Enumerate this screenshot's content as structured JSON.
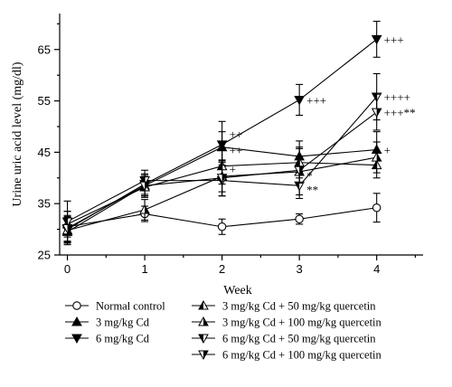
{
  "chart_data": {
    "type": "line",
    "title": "",
    "xlabel": "Week",
    "ylabel": "Urine uric acid level (mg/dl)",
    "x": [
      0,
      1,
      2,
      3,
      4
    ],
    "x_ticks": [
      "0",
      "1",
      "2",
      "3",
      "4"
    ],
    "y_ticks": [
      "25",
      "35",
      "45",
      "55",
      "65"
    ],
    "xlim": [
      -0.1,
      4.6
    ],
    "ylim": [
      25,
      72
    ],
    "grid": false,
    "legend_position": "bottom",
    "series": [
      {
        "name": "Normal control",
        "marker": "circle-open",
        "values": [
          30.5,
          33.0,
          30.5,
          32.0,
          34.2
        ],
        "errors": [
          3.0,
          1.5,
          1.5,
          1.0,
          2.8
        ]
      },
      {
        "name": "3 mg/kg Cd",
        "marker": "triangle-up-filled",
        "values": [
          29.5,
          38.5,
          46.0,
          44.2,
          45.5
        ],
        "errors": [
          2.5,
          2.0,
          3.0,
          3.0,
          3.5
        ]
      },
      {
        "name": "6 mg/kg Cd",
        "marker": "triangle-down-filled",
        "values": [
          30.0,
          38.8,
          46.5,
          55.2,
          67.0
        ],
        "errors": [
          2.5,
          2.0,
          4.5,
          3.0,
          3.5
        ]
      },
      {
        "name": "3 mg/kg Cd + 50 mg/kg quercetin",
        "marker": "triangle-up-halffilled",
        "values": [
          31.0,
          38.2,
          42.3,
          43.0,
          42.5
        ],
        "errors": [
          2.5,
          2.0,
          3.5,
          3.0,
          2.5
        ]
      },
      {
        "name": "3 mg/kg Cd + 100 mg/kg quercetin",
        "marker": "triangle-up-halfopen",
        "values": [
          29.8,
          33.8,
          40.3,
          41.2,
          44.0
        ],
        "errors": [
          2.5,
          2.0,
          3.0,
          4.5,
          3.0
        ]
      },
      {
        "name": "6 mg/kg Cd + 50 mg/kg quercetin",
        "marker": "triangle-down-halffilled",
        "values": [
          31.5,
          39.5,
          39.5,
          38.5,
          55.8
        ],
        "errors": [
          4.0,
          2.0,
          3.0,
          2.5,
          4.5
        ]
      },
      {
        "name": "6 mg/kg Cd + 100 mg/kg quercetin",
        "marker": "triangle-down-halfopen",
        "values": [
          30.2,
          38.5,
          40.0,
          41.5,
          52.8
        ],
        "errors": [
          2.5,
          2.0,
          3.5,
          2.5,
          3.5
        ]
      }
    ],
    "annotations": [
      {
        "text": "+++",
        "x": 4,
        "y": 67.0
      },
      {
        "text": "+++",
        "x": 3,
        "y": 55.2
      },
      {
        "text": "++++",
        "x": 4,
        "y": 55.8
      },
      {
        "text": "+++**",
        "x": 4,
        "y": 52.8
      },
      {
        "text": "++",
        "x": 2,
        "y": 48.6
      },
      {
        "text": "++",
        "x": 2,
        "y": 45.5
      },
      {
        "text": "+",
        "x": 4,
        "y": 45.5
      },
      {
        "text": "+",
        "x": 2,
        "y": 41.8
      },
      {
        "text": "*",
        "x": 3,
        "y": 40.5
      },
      {
        "text": "**",
        "x": 3,
        "y": 37.8
      }
    ]
  }
}
